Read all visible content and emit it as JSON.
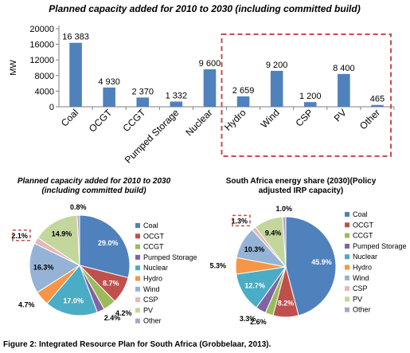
{
  "figure": {
    "caption": "Figure 2: Integrated Resource Plan for South Africa (Grobbelaar, 2013)."
  },
  "chart_data": [
    {
      "type": "bar",
      "title": "Planned capacity added for 2010 to 2030 (including committed build)",
      "ylabel": "MW",
      "xlabel": "",
      "ylim": [
        0,
        20000
      ],
      "yticks": [
        0,
        4000,
        8000,
        12000,
        16000,
        20000
      ],
      "ytick_labels": [
        "0",
        "4000",
        "8000",
        "12000",
        "16000",
        "20000"
      ],
      "categories": [
        "Coal",
        "OCGT",
        "CCGT",
        "Pumped Storage",
        "Nuclear",
        "Hydro",
        "Wind",
        "CSP",
        "PV",
        "Other"
      ],
      "values": [
        16383,
        4930,
        2370,
        1332,
        9600,
        2659,
        9200,
        1200,
        8400,
        465
      ],
      "data_labels": [
        "16 383",
        "4 930",
        "2 370",
        "1 332",
        "9 600",
        "2 659",
        "9 200",
        "1 200",
        "8 400",
        "465"
      ],
      "bar_color": "#4F81BD",
      "highlight": {
        "categories": [
          "Hydro",
          "Wind",
          "CSP",
          "PV",
          "Other"
        ],
        "style": "dashed box",
        "color": "#C0504D"
      },
      "grid": false
    },
    {
      "type": "pie",
      "title_lines": [
        "Planned capacity added for 2010 to 2030",
        "(including committed build)"
      ],
      "categories": [
        "Coal",
        "OCGT",
        "CCGT",
        "Pumped Storage",
        "Nuclear",
        "Hydro",
        "Wind",
        "CSP",
        "PV",
        "Other"
      ],
      "values": [
        29.0,
        8.7,
        4.2,
        2.4,
        17.0,
        4.7,
        16.3,
        2.1,
        14.9,
        0.8
      ],
      "data_labels": [
        "29.0%",
        "8.7%",
        "4.2%",
        "2.4%",
        "17.0%",
        "4.7%",
        "16.3%",
        "2.1%",
        "14.9%",
        "0.8%"
      ],
      "colors": [
        "#4F81BD",
        "#C0504D",
        "#9BBB59",
        "#8064A2",
        "#4BACC6",
        "#F79646",
        "#95B3D7",
        "#E6B8B7",
        "#C3D69B",
        "#B3A2C7"
      ],
      "highlight_label": "2.1%",
      "legend_position": "right"
    },
    {
      "type": "pie",
      "title_lines": [
        "South Africa energy share (2030)(Policy",
        "adjusted IRP capacity)"
      ],
      "categories": [
        "Coal",
        "OCGT",
        "CCGT",
        "Pumped Storage",
        "Nuclear",
        "Hydro",
        "Wind",
        "CSP",
        "PV",
        "Other"
      ],
      "values": [
        45.9,
        8.2,
        2.6,
        3.3,
        12.7,
        5.3,
        10.3,
        1.3,
        9.4,
        1.0
      ],
      "data_labels": [
        "45.9%",
        "8.2%",
        "2.6%",
        "3.3%",
        "12.7%",
        "5.3%",
        "10.3%",
        "1.3%",
        "9.4%",
        "1.0%"
      ],
      "colors": [
        "#4F81BD",
        "#C0504D",
        "#9BBB59",
        "#8064A2",
        "#4BACC6",
        "#F79646",
        "#95B3D7",
        "#E6B8B7",
        "#C3D69B",
        "#B3A2C7"
      ],
      "highlight_label": "1.3%",
      "legend_position": "right"
    }
  ]
}
